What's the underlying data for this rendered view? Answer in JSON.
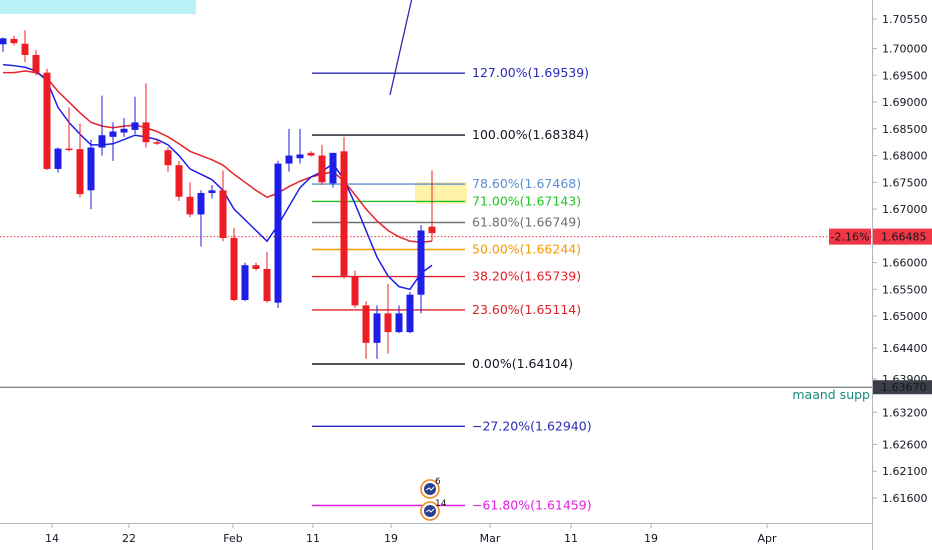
{
  "chart_data": {
    "type": "candlestick",
    "y_axis": {
      "ticks": [
        "1.70550",
        "1.70000",
        "1.69500",
        "1.69000",
        "1.68500",
        "1.68000",
        "1.67500",
        "1.67000",
        "1.66500",
        "1.66000",
        "1.65500",
        "1.65000",
        "1.64400",
        "1.63900",
        "1.63200",
        "1.62600",
        "1.62100",
        "1.61600"
      ],
      "range": [
        1.612,
        1.709
      ]
    },
    "x_axis": {
      "ticks": [
        "14",
        "22",
        "Feb",
        "11",
        "19",
        "Mar",
        "11",
        "19",
        "Apr"
      ]
    },
    "price_tag": {
      "change": "-2.16%",
      "price": "1.66485",
      "value": 1.66485,
      "color": "#f23645"
    },
    "support": {
      "label": "maand supp",
      "price": "1.63670",
      "value": 1.6367
    },
    "fib_levels": [
      {
        "label": "127.00%(1.69539)",
        "value": 1.69539,
        "color": "#2a2ab8"
      },
      {
        "label": "100.00%(1.68384)",
        "value": 1.68384,
        "color": "#131722"
      },
      {
        "label": "78.60%(1.67468)",
        "value": 1.67468,
        "color": "#5b8fd0"
      },
      {
        "label": "71.00%(1.67143)",
        "value": 1.67143,
        "color": "#22c322"
      },
      {
        "label": "61.80%(1.66749)",
        "value": 1.66749,
        "color": "#707070"
      },
      {
        "label": "50.00%(1.66244)",
        "value": 1.66244,
        "color": "#f59a00"
      },
      {
        "label": "38.20%(1.65739)",
        "value": 1.65739,
        "color": "#e0202a"
      },
      {
        "label": "23.60%(1.65114)",
        "value": 1.65114,
        "color": "#e0202a"
      },
      {
        "label": "0.00%(1.64104)",
        "value": 1.64104,
        "color": "#131722"
      },
      {
        "label": "−27.20%(1.62940)",
        "value": 1.6294,
        "color": "#2a2ab8"
      },
      {
        "label": "−61.80%(1.61459)",
        "value": 1.61459,
        "color": "#e020e0"
      }
    ],
    "candles": [
      {
        "o": 1.7008,
        "h": 1.7021,
        "l": 1.6994,
        "c": 1.7019
      },
      {
        "o": 1.7018,
        "h": 1.7024,
        "l": 1.7006,
        "c": 1.701
      },
      {
        "o": 1.7009,
        "h": 1.7034,
        "l": 1.6975,
        "c": 1.6988
      },
      {
        "o": 1.6988,
        "h": 1.6997,
        "l": 1.695,
        "c": 1.6955
      },
      {
        "o": 1.6955,
        "h": 1.6962,
        "l": 1.6773,
        "c": 1.6775
      },
      {
        "o": 1.6775,
        "h": 1.6815,
        "l": 1.6768,
        "c": 1.6813
      },
      {
        "o": 1.6813,
        "h": 1.689,
        "l": 1.6808,
        "c": 1.6812
      },
      {
        "o": 1.6812,
        "h": 1.686,
        "l": 1.6722,
        "c": 1.6728
      },
      {
        "o": 1.6735,
        "h": 1.683,
        "l": 1.67,
        "c": 1.6815
      },
      {
        "o": 1.6815,
        "h": 1.6912,
        "l": 1.68,
        "c": 1.6838
      },
      {
        "o": 1.6835,
        "h": 1.6862,
        "l": 1.679,
        "c": 1.6845
      },
      {
        "o": 1.6843,
        "h": 1.687,
        "l": 1.6835,
        "c": 1.685
      },
      {
        "o": 1.6848,
        "h": 1.691,
        "l": 1.684,
        "c": 1.6862
      },
      {
        "o": 1.6862,
        "h": 1.6935,
        "l": 1.6815,
        "c": 1.6825
      },
      {
        "o": 1.6825,
        "h": 1.683,
        "l": 1.682,
        "c": 1.6824
      },
      {
        "o": 1.681,
        "h": 1.6815,
        "l": 1.677,
        "c": 1.6782
      },
      {
        "o": 1.6782,
        "h": 1.679,
        "l": 1.6715,
        "c": 1.6723
      },
      {
        "o": 1.6723,
        "h": 1.675,
        "l": 1.6685,
        "c": 1.669
      },
      {
        "o": 1.669,
        "h": 1.6735,
        "l": 1.663,
        "c": 1.673
      },
      {
        "o": 1.673,
        "h": 1.6745,
        "l": 1.672,
        "c": 1.6735
      },
      {
        "o": 1.6735,
        "h": 1.6772,
        "l": 1.664,
        "c": 1.6646
      },
      {
        "o": 1.6646,
        "h": 1.6665,
        "l": 1.6528,
        "c": 1.653
      },
      {
        "o": 1.653,
        "h": 1.66,
        "l": 1.6528,
        "c": 1.6595
      },
      {
        "o": 1.6595,
        "h": 1.66,
        "l": 1.6585,
        "c": 1.6588
      },
      {
        "o": 1.6588,
        "h": 1.662,
        "l": 1.6525,
        "c": 1.6528
      },
      {
        "o": 1.6525,
        "h": 1.679,
        "l": 1.6515,
        "c": 1.6785
      },
      {
        "o": 1.6785,
        "h": 1.685,
        "l": 1.677,
        "c": 1.68
      },
      {
        "o": 1.6795,
        "h": 1.685,
        "l": 1.6785,
        "c": 1.6802
      },
      {
        "o": 1.6805,
        "h": 1.6808,
        "l": 1.6798,
        "c": 1.68
      },
      {
        "o": 1.68,
        "h": 1.682,
        "l": 1.6745,
        "c": 1.675
      },
      {
        "o": 1.6748,
        "h": 1.6805,
        "l": 1.674,
        "c": 1.6805
      },
      {
        "o": 1.6808,
        "h": 1.6835,
        "l": 1.657,
        "c": 1.6575
      },
      {
        "o": 1.6575,
        "h": 1.6585,
        "l": 1.6515,
        "c": 1.652
      },
      {
        "o": 1.652,
        "h": 1.6528,
        "l": 1.642,
        "c": 1.645
      },
      {
        "o": 1.645,
        "h": 1.652,
        "l": 1.642,
        "c": 1.6505
      },
      {
        "o": 1.6505,
        "h": 1.656,
        "l": 1.643,
        "c": 1.647
      },
      {
        "o": 1.647,
        "h": 1.652,
        "l": 1.6468,
        "c": 1.6505
      },
      {
        "o": 1.647,
        "h": 1.6545,
        "l": 1.6468,
        "c": 1.654
      },
      {
        "o": 1.654,
        "h": 1.667,
        "l": 1.6505,
        "c": 1.666
      },
      {
        "o": 1.6667,
        "h": 1.6772,
        "l": 1.664,
        "c": 1.6655
      }
    ],
    "ma_fast": [
      1.697,
      1.6968,
      1.6965,
      1.6958,
      1.694,
      1.689,
      1.6862,
      1.684,
      1.682,
      1.682,
      1.6822,
      1.683,
      1.6838,
      1.6835,
      1.683,
      1.682,
      1.68,
      1.6775,
      1.6765,
      1.6755,
      1.6735,
      1.67,
      1.668,
      1.666,
      1.664,
      1.667,
      1.6705,
      1.674,
      1.676,
      1.677,
      1.6785,
      1.6755,
      1.671,
      1.666,
      1.661,
      1.6575,
      1.6555,
      1.655,
      1.658,
      1.6595
    ],
    "ma_slow": [
      1.6955,
      1.6955,
      1.6958,
      1.6955,
      1.6945,
      1.692,
      1.69,
      1.688,
      1.6862,
      1.6855,
      1.6852,
      1.6855,
      1.6857,
      1.6852,
      1.6845,
      1.6835,
      1.6822,
      1.6808,
      1.68,
      1.6792,
      1.6782,
      1.6765,
      1.675,
      1.6735,
      1.6722,
      1.673,
      1.6742,
      1.6752,
      1.676,
      1.6765,
      1.677,
      1.6752,
      1.6727,
      1.67,
      1.6678,
      1.666,
      1.6648,
      1.664,
      1.6638,
      1.664
    ]
  },
  "annotations": {
    "badge_top": "6",
    "badge_bottom": "14"
  },
  "colors": {
    "up": "#1e1ee6",
    "down": "#ee1c25",
    "ma_fast": "#1e1ee6",
    "ma_slow": "#e6232c",
    "highlight": "#fff3a8",
    "corner_box": "#b9f3f8",
    "axis_line": "#b2b5be",
    "support_text": "#1a8a7a"
  }
}
